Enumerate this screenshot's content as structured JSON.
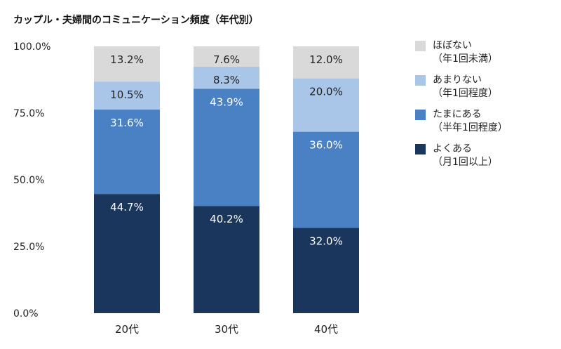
{
  "title": "カップル・夫婦間のコミュニケーション頻度（年代別）",
  "chart_data": {
    "type": "bar",
    "stacked": true,
    "categories": [
      "20代",
      "30代",
      "40代"
    ],
    "series": [
      {
        "name": "よくある",
        "sub": "（月1回以上）",
        "color": "#1b365d",
        "label_color": "#ffffff",
        "values": [
          44.7,
          40.2,
          32.0
        ]
      },
      {
        "name": "たまにある",
        "sub": "（半年1回程度）",
        "color": "#4a81c4",
        "label_color": "#ffffff",
        "values": [
          31.6,
          43.9,
          36.0
        ]
      },
      {
        "name": "あまりない",
        "sub": "（年1回程度）",
        "color": "#a9c6e8",
        "label_color": "#222222",
        "values": [
          10.5,
          8.3,
          20.0
        ]
      },
      {
        "name": "ほぼない",
        "sub": "（年1回未満）",
        "color": "#d9d9d9",
        "label_color": "#222222",
        "values": [
          13.2,
          7.6,
          12.0
        ]
      }
    ],
    "value_labels": [
      [
        "44.7%",
        "40.2%",
        "32.0%"
      ],
      [
        "31.6%",
        "43.9%",
        "36.0%"
      ],
      [
        "10.5%",
        "8.3%",
        "20.0%"
      ],
      [
        "13.2%",
        "7.6%",
        "12.0%"
      ]
    ],
    "ylim": [
      0,
      100
    ],
    "yticks": [
      0,
      25,
      50,
      75,
      100
    ],
    "ytick_labels": [
      "0.0%",
      "25.0%",
      "50.0%",
      "75.0%",
      "100.0%"
    ],
    "grid": false,
    "legend": "right"
  }
}
